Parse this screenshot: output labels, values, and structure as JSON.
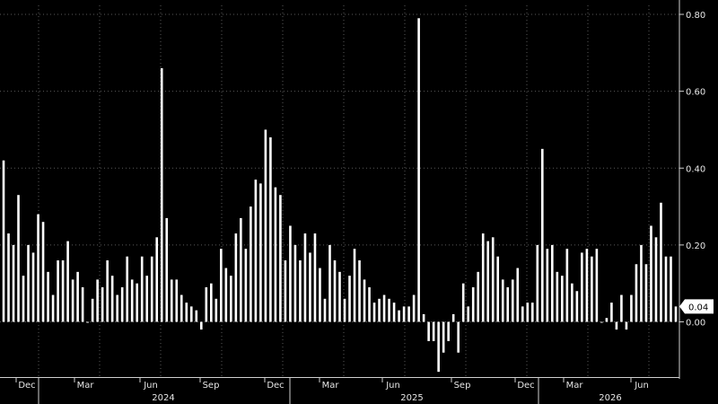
{
  "chart_data": {
    "type": "bar",
    "title": "",
    "xlabel": "",
    "ylabel": "",
    "ylim": [
      -0.13,
      0.82
    ],
    "y_ticks": [
      0.0,
      0.2,
      0.4,
      0.6,
      0.8
    ],
    "y_tick_labels": [
      "0.00",
      "0.20",
      "0.40",
      "0.60",
      "0.80"
    ],
    "y_axis_position": "right",
    "grid": true,
    "grid_style": "dotted",
    "background_color": "#000000",
    "bar_color": "#ffffff",
    "last_value_label": "0.04",
    "month_labels": [
      "Dec",
      "Mar",
      "Jun",
      "Sep",
      "Dec",
      "Mar",
      "Jun",
      "Sep",
      "Dec",
      "Mar",
      "Jun"
    ],
    "year_labels": [
      "2024",
      "2025",
      "2026"
    ],
    "values": [
      0.42,
      0.23,
      0.2,
      0.33,
      0.12,
      0.2,
      0.18,
      0.28,
      0.26,
      0.13,
      0.07,
      0.16,
      0.16,
      0.21,
      0.11,
      0.13,
      0.09,
      0.0,
      0.06,
      0.11,
      0.09,
      0.16,
      0.12,
      0.07,
      0.09,
      0.17,
      0.11,
      0.1,
      0.17,
      0.12,
      0.17,
      0.22,
      0.66,
      0.27,
      0.11,
      0.11,
      0.07,
      0.05,
      0.04,
      0.03,
      -0.02,
      0.09,
      0.1,
      0.06,
      0.19,
      0.14,
      0.12,
      0.23,
      0.27,
      0.19,
      0.3,
      0.37,
      0.36,
      0.5,
      0.48,
      0.35,
      0.33,
      0.16,
      0.25,
      0.2,
      0.16,
      0.23,
      0.18,
      0.23,
      0.14,
      0.06,
      0.2,
      0.16,
      0.13,
      0.06,
      0.12,
      0.19,
      0.16,
      0.11,
      0.09,
      0.05,
      0.06,
      0.07,
      0.06,
      0.05,
      0.03,
      0.04,
      0.04,
      0.07,
      0.79,
      0.02,
      -0.05,
      -0.05,
      -0.13,
      -0.08,
      -0.05,
      0.02,
      -0.08,
      0.1,
      0.04,
      0.09,
      0.13,
      0.23,
      0.21,
      0.22,
      0.17,
      0.11,
      0.09,
      0.11,
      0.14,
      0.04,
      0.05,
      0.05,
      0.2,
      0.45,
      0.19,
      0.2,
      0.13,
      0.12,
      0.19,
      0.1,
      0.08,
      0.18,
      0.19,
      0.17,
      0.19,
      0.0,
      0.01,
      0.05,
      -0.02,
      0.07,
      -0.02,
      0.07,
      0.15,
      0.2,
      0.15,
      0.25,
      0.22,
      0.31,
      0.17,
      0.17,
      0.04
    ]
  }
}
